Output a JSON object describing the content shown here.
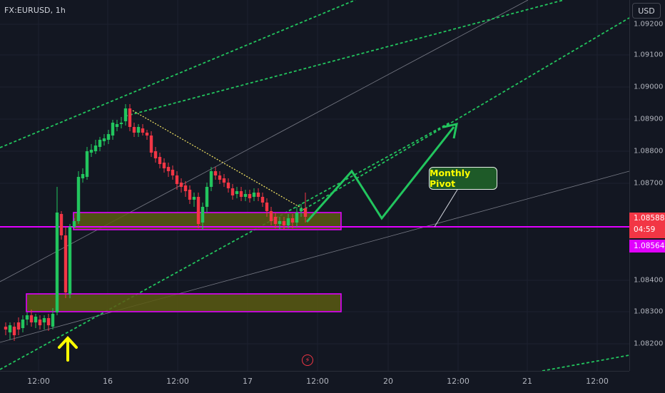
{
  "symbol": "FX:EURUSD, 1h",
  "currency_button": "USD",
  "price_ticks": [
    "1.09200",
    "1.09100",
    "1.09000",
    "1.08900",
    "1.08800",
    "1.08700",
    "1.08400",
    "1.08300",
    "1.08200"
  ],
  "current_price": {
    "price": "1.08588",
    "countdown": "04:59"
  },
  "pivot_price": "1.08564",
  "time_ticks": [
    "12:00",
    "16",
    "12:00",
    "17",
    "12:00",
    "20",
    "12:00",
    "21",
    "12:00"
  ],
  "annotation_label": "Monthly Pivot",
  "colors": {
    "background": "#131722",
    "up_candle": "#089981",
    "up_candle_bright": "#22c55e",
    "down_candle": "#f23645",
    "pivot_line": "#e100ff",
    "zone_fill": "#5a5a12",
    "trendline_green": "#22c55e",
    "arrow_yellow": "#ffff00"
  },
  "icons": [
    "lightning-icon",
    "up-arrow-icon",
    "projection-arrow-icon"
  ]
}
